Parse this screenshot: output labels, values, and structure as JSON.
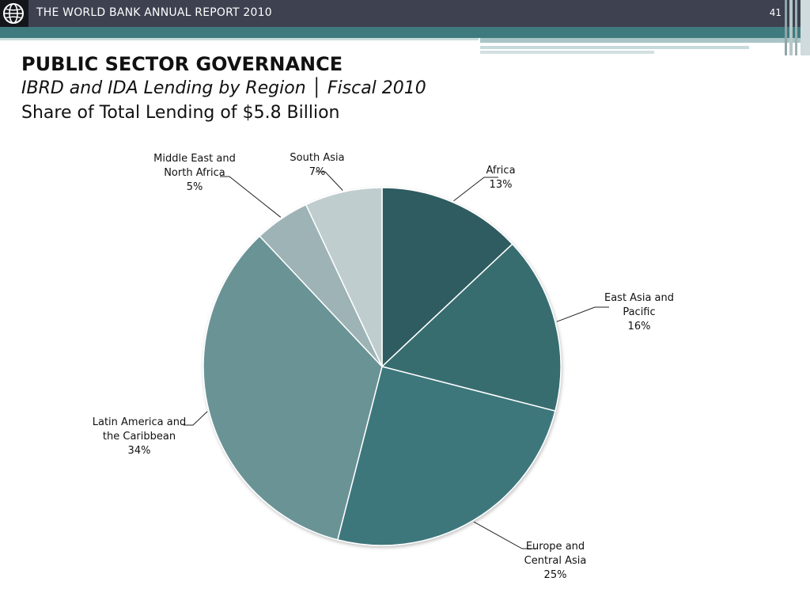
{
  "header": {
    "report_title": "THE WORLD BANK ANNUAL REPORT 2010",
    "page_number": "41",
    "logo_icon": "world-bank-globe-icon"
  },
  "slide": {
    "title": "PUBLIC SECTOR GOVERNANCE",
    "subtitle_1": "IBRD and IDA Lending by Region │ Fiscal 2010",
    "subtitle_2": "Share of Total Lending of $5.8 Billion"
  },
  "chart_data": {
    "type": "pie",
    "categories": [
      "Africa",
      "East Asia and Pacific",
      "Europe and Central Asia",
      "Latin America and the Caribbean",
      "Middle East and North Africa",
      "South Asia"
    ],
    "values": [
      13,
      16,
      25,
      34,
      5,
      7
    ],
    "value_labels": [
      "13%",
      "16%",
      "25%",
      "34%",
      "5%",
      "7%"
    ],
    "label_lines": [
      [
        "Africa",
        "13%"
      ],
      [
        "East Asia and",
        "Pacific",
        "16%"
      ],
      [
        "Europe and",
        "Central Asia",
        "25%"
      ],
      [
        "Latin America and",
        "the Caribbean",
        "34%"
      ],
      [
        "Middle East and",
        "North Africa",
        "5%"
      ],
      [
        "South Asia",
        "7%"
      ]
    ],
    "colors": [
      "#2e5c61",
      "#386d70",
      "#3e777c",
      "#6a9396",
      "#9db3b5",
      "#bfcdcf"
    ],
    "start": "12 o'clock",
    "direction": "clockwise",
    "legend": "none"
  }
}
